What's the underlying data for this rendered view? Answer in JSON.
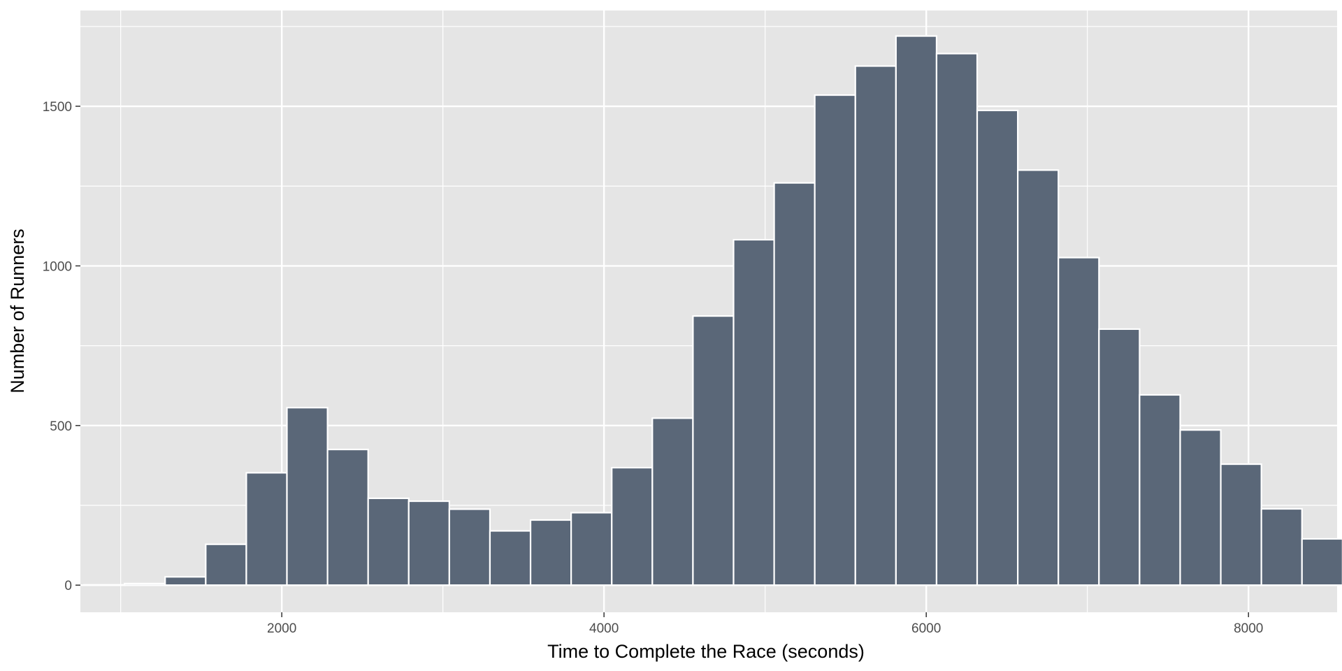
{
  "chart_data": {
    "type": "bar",
    "subtype": "histogram",
    "xlabel": "Time to Complete the Race (seconds)",
    "ylabel": "Number of Runners",
    "xlim": [
      750,
      8550
    ],
    "ylim": [
      -85,
      1800
    ],
    "x_ticks": [
      2000,
      4000,
      6000,
      8000
    ],
    "x_minor_ticks": [
      1000,
      3000,
      5000,
      7000
    ],
    "y_ticks": [
      0,
      500,
      1000,
      1500
    ],
    "y_minor_ticks": [
      250,
      750,
      1250,
      1750
    ],
    "x_tick_labels": [
      "2000",
      "4000",
      "6000",
      "8000"
    ],
    "y_tick_labels": [
      "0",
      "500",
      "1000",
      "1500"
    ],
    "bin_width": 252,
    "bins": [
      {
        "start": 772,
        "end": 1024,
        "count": 1
      },
      {
        "start": 1024,
        "end": 1276,
        "count": 5
      },
      {
        "start": 1276,
        "end": 1528,
        "count": 26
      },
      {
        "start": 1528,
        "end": 1780,
        "count": 128
      },
      {
        "start": 1780,
        "end": 2032,
        "count": 352
      },
      {
        "start": 2032,
        "end": 2284,
        "count": 556
      },
      {
        "start": 2284,
        "end": 2536,
        "count": 425
      },
      {
        "start": 2536,
        "end": 2788,
        "count": 272
      },
      {
        "start": 2788,
        "end": 3040,
        "count": 263
      },
      {
        "start": 3040,
        "end": 3292,
        "count": 238
      },
      {
        "start": 3292,
        "end": 3544,
        "count": 170
      },
      {
        "start": 3544,
        "end": 3796,
        "count": 204
      },
      {
        "start": 3796,
        "end": 4048,
        "count": 227
      },
      {
        "start": 4048,
        "end": 4300,
        "count": 368
      },
      {
        "start": 4300,
        "end": 4552,
        "count": 523
      },
      {
        "start": 4552,
        "end": 4804,
        "count": 843
      },
      {
        "start": 4804,
        "end": 5056,
        "count": 1082
      },
      {
        "start": 5056,
        "end": 5308,
        "count": 1260
      },
      {
        "start": 5308,
        "end": 5560,
        "count": 1535
      },
      {
        "start": 5560,
        "end": 5812,
        "count": 1626
      },
      {
        "start": 5812,
        "end": 6064,
        "count": 1720
      },
      {
        "start": 6064,
        "end": 6316,
        "count": 1665
      },
      {
        "start": 6316,
        "end": 6568,
        "count": 1487
      },
      {
        "start": 6568,
        "end": 6820,
        "count": 1300
      },
      {
        "start": 6820,
        "end": 7072,
        "count": 1026
      },
      {
        "start": 7072,
        "end": 7324,
        "count": 802
      },
      {
        "start": 7324,
        "end": 7576,
        "count": 596
      },
      {
        "start": 7576,
        "end": 7828,
        "count": 486
      },
      {
        "start": 7828,
        "end": 8080,
        "count": 379
      },
      {
        "start": 8080,
        "end": 8332,
        "count": 239
      },
      {
        "start": 8332,
        "end": 8584,
        "count": 145
      }
    ],
    "grid": true,
    "legend": "none",
    "colors": {
      "panel_background": "#e5e5e5",
      "grid": "#ffffff",
      "bar_fill": "#5a6778",
      "bar_outline": "#ffffff",
      "tick_mark": "#333333"
    }
  }
}
